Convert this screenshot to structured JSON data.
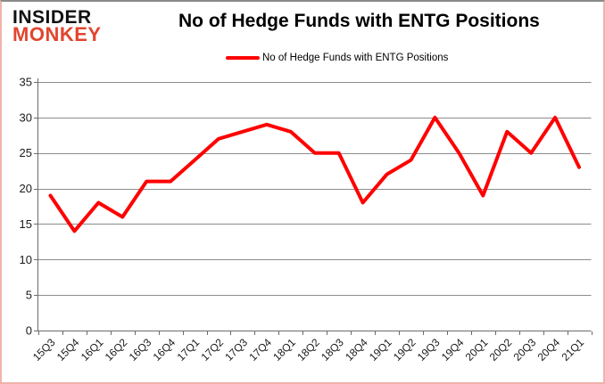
{
  "brand": {
    "line1": "INSIDER",
    "line2": "MONKEY",
    "color1": "#111111",
    "color2": "#e2452e"
  },
  "header": {
    "title": "No of Hedge Funds with ENTG Positions"
  },
  "legend": {
    "label": "No of Hedge Funds with ENTG Positions",
    "color": "#ff0000"
  },
  "chart_data": {
    "type": "line",
    "title": "No of Hedge Funds with ENTG Positions",
    "categories": [
      "15Q3",
      "15Q4",
      "16Q1",
      "16Q2",
      "16Q3",
      "16Q4",
      "17Q1",
      "17Q2",
      "17Q3",
      "17Q4",
      "18Q1",
      "18Q2",
      "18Q3",
      "18Q4",
      "19Q1",
      "19Q2",
      "19Q3",
      "19Q4",
      "20Q1",
      "20Q2",
      "20Q3",
      "20Q4",
      "21Q1"
    ],
    "series": [
      {
        "name": "No of Hedge Funds with ENTG Positions",
        "color": "#ff0000",
        "values": [
          19,
          14,
          18,
          16,
          21,
          21,
          24,
          27,
          28,
          29,
          28,
          25,
          25,
          18,
          22,
          24,
          30,
          25,
          19,
          28,
          25,
          30,
          23
        ]
      }
    ],
    "xlabel": "",
    "ylabel": "",
    "ylim": [
      0,
      35
    ],
    "yticks": [
      0,
      5,
      10,
      15,
      20,
      25,
      30,
      35
    ],
    "grid": true,
    "legend_position": "top",
    "line_width": 4,
    "gridline_color": "#8c8c8c",
    "axis_color": "#6b6b6b",
    "text_color": "#1a1a1a"
  }
}
